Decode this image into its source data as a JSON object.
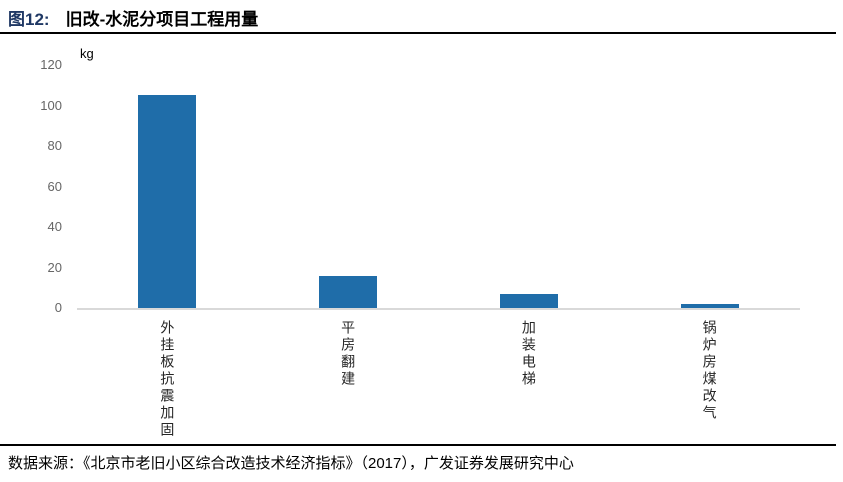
{
  "title": {
    "figure_label": "图12:",
    "text": "旧改-水泥分项目工程用量"
  },
  "chart_data": {
    "type": "bar",
    "title": "旧改-水泥分项目工程用量",
    "categories": [
      "外挂板抗震加固",
      "平房翻建",
      "加装电梯",
      "锅炉房煤改气"
    ],
    "values": [
      105,
      16,
      7,
      2
    ],
    "unit_label": "kg",
    "xlabel": "",
    "ylabel": "kg",
    "y_ticks": [
      0,
      20,
      40,
      60,
      80,
      100,
      120
    ],
    "ylim": [
      0,
      120
    ],
    "grid": false,
    "legend": "none",
    "bar_color": "#1F6DA9"
  },
  "footer": {
    "source_text": "数据来源：《北京市老旧小区综合改造技术经济指标》（2017），广发证券发展研究中心"
  },
  "colors": {
    "figure_label_text": "#1F3864",
    "bar": "#1F6DA9",
    "axis_line": "#D9D9D9",
    "tick_text": "#666666",
    "category_text": "#262626",
    "rule": "#000000"
  }
}
